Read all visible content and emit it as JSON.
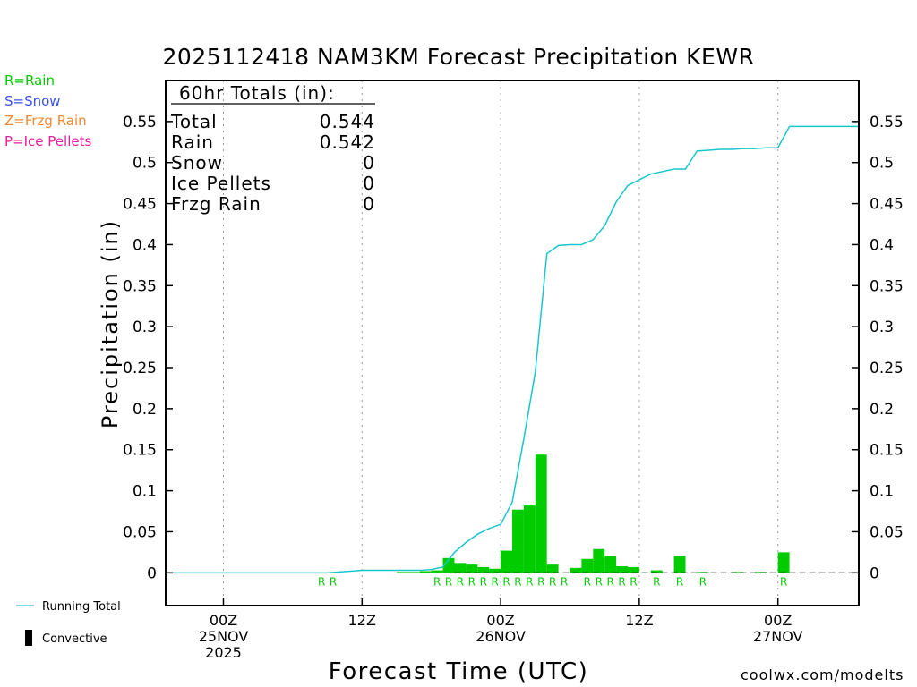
{
  "colors": {
    "rain": "#00cc00",
    "snow": "#3a52e6",
    "frzg_rain": "#ee8833",
    "ice_pellets": "#e0209a",
    "running_total": "#18c6cc",
    "convective": "#000000"
  },
  "precip_legend": [
    {
      "label": "R=Rain",
      "color_key": "rain"
    },
    {
      "label": "S=Snow",
      "color_key": "snow"
    },
    {
      "label": "Z=Frzg Rain",
      "color_key": "frzg_rain"
    },
    {
      "label": "P=Ice Pellets",
      "color_key": "ice_pellets"
    }
  ],
  "series_legend": {
    "running_total": "Running Total",
    "convective": "Convective"
  },
  "totals_box": {
    "header": "60hr Totals (in):",
    "rows": [
      {
        "label": "Total",
        "value": "0.544"
      },
      {
        "label": "Rain",
        "value": "0.542"
      },
      {
        "label": "Snow",
        "value": "0"
      },
      {
        "label": "Ice Pellets",
        "value": "0"
      },
      {
        "label": "Frzg Rain",
        "value": "0"
      }
    ]
  },
  "watermark": "coolwx.com/modelts",
  "chart_data": {
    "type": "bar",
    "title": "2025112418 NAM3KM Forecast Precipitation KEWR",
    "xlabel": "Forecast Time (UTC)",
    "ylabel": "Precipitation (in)",
    "xlim_hours": [
      -5,
      55
    ],
    "ylim": [
      -0.04,
      0.6
    ],
    "y_ticks": [
      0,
      0.05,
      0.1,
      0.15,
      0.2,
      0.25,
      0.3,
      0.35,
      0.4,
      0.45,
      0.5,
      0.55
    ],
    "y_tick_labels": [
      "0",
      "0.05",
      "0.1",
      "0.15",
      "0.2",
      "0.25",
      "0.3",
      "0.35",
      "0.4",
      "0.45",
      "0.5",
      "0.55"
    ],
    "x_ticks": [
      {
        "hour": 0,
        "lines": [
          "00Z",
          "25NOV",
          "2025"
        ]
      },
      {
        "hour": 12,
        "lines": [
          "12Z"
        ]
      },
      {
        "hour": 24,
        "lines": [
          "00Z",
          "26NOV"
        ]
      },
      {
        "hour": 36,
        "lines": [
          "12Z"
        ]
      },
      {
        "hour": 48,
        "lines": [
          "00Z",
          "27NOV"
        ]
      }
    ],
    "bars": [
      {
        "hour": 16,
        "value": 0.001
      },
      {
        "hour": 17,
        "value": 0.001
      },
      {
        "hour": 18,
        "value": 0.002
      },
      {
        "hour": 19,
        "value": 0.003
      },
      {
        "hour": 20,
        "value": 0.018
      },
      {
        "hour": 21,
        "value": 0.012
      },
      {
        "hour": 22,
        "value": 0.01
      },
      {
        "hour": 23,
        "value": 0.007
      },
      {
        "hour": 24,
        "value": 0.005
      },
      {
        "hour": 25,
        "value": 0.027
      },
      {
        "hour": 26,
        "value": 0.077
      },
      {
        "hour": 27,
        "value": 0.082
      },
      {
        "hour": 28,
        "value": 0.144
      },
      {
        "hour": 29,
        "value": 0.01
      },
      {
        "hour": 31,
        "value": 0.006
      },
      {
        "hour": 32,
        "value": 0.017
      },
      {
        "hour": 33,
        "value": 0.029
      },
      {
        "hour": 34,
        "value": 0.02
      },
      {
        "hour": 35,
        "value": 0.008
      },
      {
        "hour": 36,
        "value": 0.007
      },
      {
        "hour": 38,
        "value": 0.003
      },
      {
        "hour": 40,
        "value": 0.021
      },
      {
        "hour": 42,
        "value": 0.001
      },
      {
        "hour": 45,
        "value": 0.001
      },
      {
        "hour": 47,
        "value": 0.001
      },
      {
        "hour": 49,
        "value": 0.025
      }
    ],
    "running_total": {
      "hours": [
        -5,
        9,
        10,
        11,
        12,
        13,
        14,
        15,
        16,
        17,
        18,
        19,
        20,
        21,
        22,
        23,
        24,
        25,
        26,
        27,
        28,
        29,
        30,
        31,
        32,
        33,
        34,
        35,
        36,
        37,
        38,
        39,
        40,
        41,
        42,
        43,
        44,
        45,
        46,
        47,
        48,
        49,
        50,
        55
      ],
      "values": [
        0,
        0,
        0.001,
        0.002,
        0.003,
        0.003,
        0.003,
        0.003,
        0.003,
        0.003,
        0.004,
        0.007,
        0.025,
        0.037,
        0.047,
        0.054,
        0.059,
        0.086,
        0.163,
        0.245,
        0.389,
        0.399,
        0.4,
        0.4,
        0.406,
        0.423,
        0.452,
        0.472,
        0.479,
        0.486,
        0.489,
        0.492,
        0.492,
        0.514,
        0.515,
        0.516,
        0.516,
        0.517,
        0.517,
        0.518,
        0.518,
        0.544,
        0.544,
        0.544
      ]
    },
    "precip_type_labels": [
      {
        "hour": 9,
        "label": "R"
      },
      {
        "hour": 10,
        "label": "R"
      },
      {
        "hour": 19,
        "label": "R"
      },
      {
        "hour": 20,
        "label": "R"
      },
      {
        "hour": 21,
        "label": "R"
      },
      {
        "hour": 22,
        "label": "R"
      },
      {
        "hour": 23,
        "label": "R"
      },
      {
        "hour": 24,
        "label": "R"
      },
      {
        "hour": 25,
        "label": "R"
      },
      {
        "hour": 26,
        "label": "R"
      },
      {
        "hour": 27,
        "label": "R"
      },
      {
        "hour": 28,
        "label": "R"
      },
      {
        "hour": 29,
        "label": "R"
      },
      {
        "hour": 30,
        "label": "R"
      },
      {
        "hour": 32,
        "label": "R"
      },
      {
        "hour": 33,
        "label": "R"
      },
      {
        "hour": 34,
        "label": "R"
      },
      {
        "hour": 35,
        "label": "R"
      },
      {
        "hour": 36,
        "label": "R"
      },
      {
        "hour": 38,
        "label": "R"
      },
      {
        "hour": 40,
        "label": "R"
      },
      {
        "hour": 42,
        "label": "R"
      },
      {
        "hour": 49,
        "label": "R"
      }
    ]
  }
}
